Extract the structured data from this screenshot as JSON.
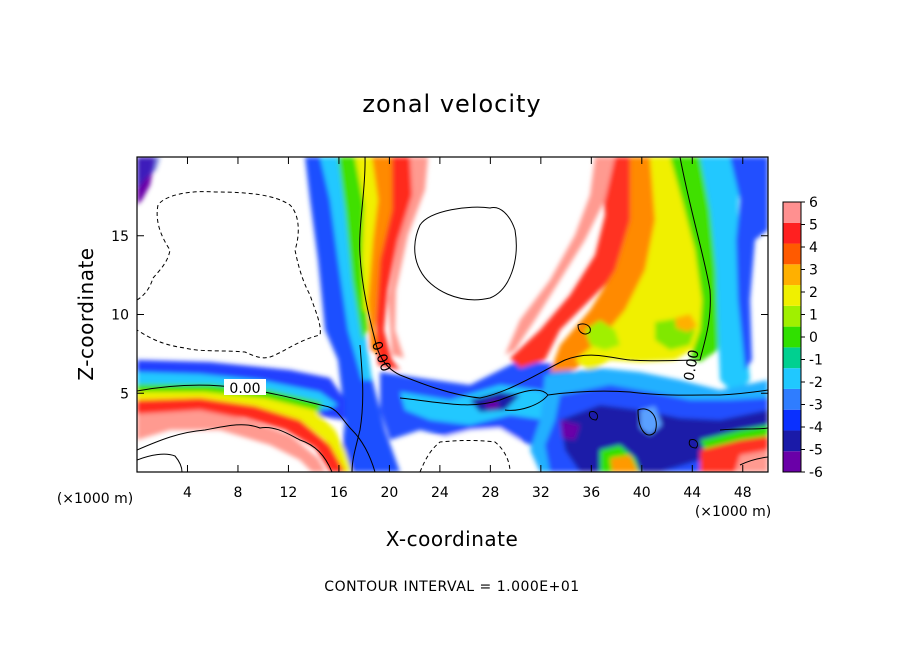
{
  "chart_data": {
    "type": "heatmap",
    "title": "zonal velocity",
    "xlabel": "X-coordinate",
    "ylabel": "Z-coordinate",
    "x_unit_left": "(×1000 m)",
    "x_unit_right": "(×1000 m)",
    "xlim": [
      0,
      50
    ],
    "ylim": [
      0,
      20
    ],
    "x_ticks": [
      4,
      8,
      12,
      16,
      20,
      24,
      28,
      32,
      36,
      40,
      44,
      48
    ],
    "x_tick_labels": [
      "4",
      "8",
      "12",
      "16",
      "20",
      "24",
      "28",
      "32",
      "36",
      "40",
      "44",
      "48"
    ],
    "y_ticks": [
      5,
      10,
      15
    ],
    "y_tick_labels": [
      "5",
      "10",
      "15"
    ],
    "colorbar": {
      "min": -6,
      "max": 6,
      "levels": [
        -6,
        -5,
        -4,
        -3,
        -2,
        -1,
        0,
        1,
        2,
        3,
        4,
        5,
        6
      ],
      "labels": [
        "-6",
        "-5",
        "-4",
        "-3",
        "-2",
        "-1",
        "0",
        "1",
        "2",
        "3",
        "4",
        "5",
        "6"
      ],
      "colors": [
        "#6a00a8",
        "#1a1aa8",
        "#0a30ff",
        "#2f7dff",
        "#20c8ff",
        "#00d090",
        "#30e000",
        "#a0f000",
        "#f0f000",
        "#ffb000",
        "#ff5a00",
        "#ff2020",
        "#ff9090"
      ]
    },
    "contour_labels": [
      "0.00",
      "0.00",
      "0.00"
    ],
    "footnote": "CONTOUR INTERVAL = 1.000E+01"
  }
}
